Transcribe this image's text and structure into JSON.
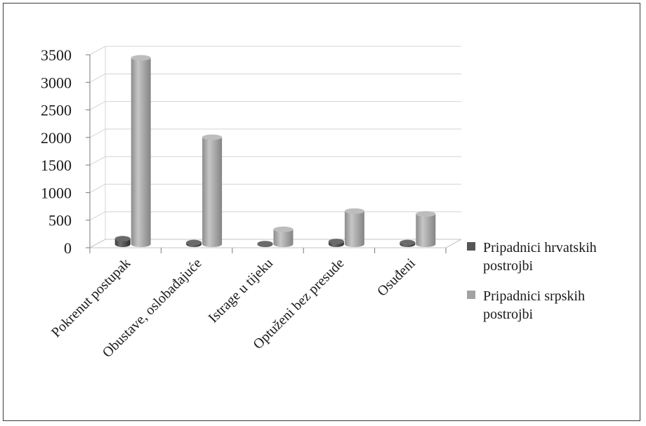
{
  "chart_data": {
    "type": "bar",
    "title": "",
    "xlabel": "",
    "ylabel": "",
    "categories": [
      "Pokrenut postupak",
      "Obustave, oslobađajuće",
      "Istrage u tijeku",
      "Optuženi bez presude",
      "Osuđeni"
    ],
    "series": [
      {
        "name": "Pripadnici hrvatskih postrojbi",
        "values": [
          100,
          30,
          10,
          50,
          30
        ],
        "color": "#555555"
      },
      {
        "name": "Pripadnici srpskih postrojbi",
        "values": [
          3380,
          1940,
          270,
          600,
          550
        ],
        "color": "#a3a3a3"
      }
    ],
    "ylim": [
      0,
      3500
    ],
    "yticks": [
      "0",
      "500",
      "1000",
      "1500",
      "2000",
      "2500",
      "3000",
      "3500"
    ],
    "grid": true,
    "legend_position": "right",
    "style": "3d-cylinder"
  }
}
